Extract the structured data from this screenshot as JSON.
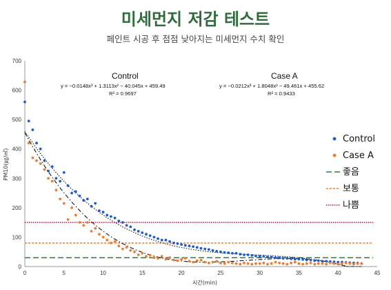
{
  "header": {
    "title": "미세먼지 저감 테스트",
    "subtitle": "페인트 시공 후 점점 낮아지는 미세먼지 수치 확인"
  },
  "chart_data": {
    "type": "scatter",
    "xlabel": "시간(min)",
    "ylabel": "PM10(㎍/㎥)",
    "xlim": [
      0,
      45
    ],
    "ylim": [
      0,
      700
    ],
    "xticks": [
      0,
      5,
      10,
      15,
      20,
      25,
      30,
      35,
      40,
      45
    ],
    "yticks": [
      0,
      100,
      200,
      300,
      400,
      500,
      600,
      700
    ],
    "grid": false,
    "legend_position": "right",
    "annotations": [
      {
        "title": "Control",
        "equation": "y = −0.0148x³ + 1.3113x² − 40.045x + 459.49",
        "r2": "R² = 0.9697"
      },
      {
        "title": "Case A",
        "equation": "y = −0.0212x³ + 1.8048x² − 49.461x + 455.62",
        "r2": "R² = 0.9433"
      }
    ],
    "series": [
      {
        "name": "Control",
        "kind": "points",
        "color": "#1f5bd1",
        "x": [
          0,
          0.5,
          1,
          1.5,
          2,
          2.5,
          3,
          3.5,
          4,
          4.5,
          5,
          5.5,
          6,
          6.5,
          7,
          7.5,
          8,
          8.5,
          9,
          9.5,
          10,
          10.5,
          11,
          11.5,
          12,
          12.5,
          13,
          13.5,
          14,
          14.5,
          15,
          15.5,
          16,
          16.5,
          17,
          17.5,
          18,
          18.5,
          19,
          19.5,
          20,
          20.5,
          21,
          21.5,
          22,
          22.5,
          23,
          23.5,
          24,
          24.5,
          25,
          25.5,
          26,
          26.5,
          27,
          27.5,
          28,
          28.5,
          29,
          29.5,
          30,
          30.5,
          31,
          31.5,
          32,
          32.5,
          33,
          33.5,
          34,
          34.5,
          35,
          35.5,
          36,
          36.5,
          37,
          37.5,
          38,
          38.5,
          39,
          39.5,
          40,
          40.5,
          41,
          41.5,
          42,
          42.5,
          43
        ],
        "y": [
          560,
          495,
          465,
          420,
          400,
          360,
          325,
          340,
          300,
          290,
          320,
          275,
          250,
          255,
          240,
          225,
          230,
          205,
          215,
          190,
          185,
          175,
          170,
          165,
          155,
          150,
          140,
          135,
          125,
          120,
          115,
          110,
          105,
          100,
          95,
          90,
          90,
          85,
          80,
          78,
          75,
          72,
          70,
          68,
          65,
          62,
          60,
          58,
          55,
          52,
          50,
          48,
          47,
          45,
          45,
          42,
          40,
          40,
          38,
          36,
          35,
          35,
          33,
          32,
          30,
          30,
          28,
          28,
          26,
          25,
          25,
          24,
          22,
          22,
          20,
          20,
          18,
          18,
          17,
          16,
          15,
          15,
          14,
          13,
          12,
          12,
          10
        ]
      },
      {
        "name": "Case A",
        "kind": "points",
        "color": "#ed7d31",
        "x": [
          0,
          0.5,
          1,
          1.5,
          2,
          2.5,
          3,
          3.5,
          4,
          4.5,
          5,
          5.5,
          6,
          6.5,
          7,
          7.5,
          8,
          8.5,
          9,
          9.5,
          10,
          10.5,
          11,
          11.5,
          12,
          12.5,
          13,
          13.5,
          14,
          14.5,
          15,
          15.5,
          16,
          16.5,
          17,
          17.5,
          18,
          18.5,
          19,
          19.5,
          20,
          20.5,
          21,
          21.5,
          22,
          22.5,
          23,
          23.5,
          24,
          24.5,
          25,
          25.5,
          26,
          26.5,
          27,
          27.5,
          28,
          28.5,
          29,
          29.5,
          30,
          30.5,
          31,
          31.5,
          32,
          32.5,
          33,
          33.5,
          34,
          34.5,
          35,
          35.5,
          36,
          36.5,
          37,
          37.5,
          38,
          38.5,
          39,
          39.5,
          40,
          40.5,
          41,
          41.5,
          42,
          42.5,
          43
        ],
        "y": [
          628,
          420,
          370,
          360,
          350,
          330,
          300,
          290,
          260,
          230,
          215,
          160,
          200,
          175,
          150,
          140,
          150,
          120,
          130,
          110,
          100,
          90,
          80,
          85,
          70,
          60,
          65,
          55,
          50,
          40,
          45,
          35,
          38,
          30,
          28,
          35,
          25,
          30,
          22,
          20,
          25,
          28,
          18,
          15,
          20,
          22,
          15,
          12,
          15,
          18,
          12,
          10,
          15,
          12,
          10,
          8,
          12,
          10,
          8,
          10,
          10,
          12,
          8,
          10,
          15,
          12,
          10,
          8,
          12,
          15,
          10,
          8,
          10,
          12,
          8,
          10,
          10,
          8,
          12,
          10,
          8,
          10,
          12,
          10,
          8,
          10,
          10
        ]
      },
      {
        "name": "좋음",
        "kind": "hline",
        "value": 30,
        "color": "#2e7d32",
        "dash": "8,4"
      },
      {
        "name": "보통",
        "kind": "hline",
        "value": 80,
        "color": "#ed7d31",
        "dash": "3,2"
      },
      {
        "name": "나쁨",
        "kind": "hline",
        "value": 150,
        "color": "#c0143c",
        "dash": "1.5,1.5"
      }
    ],
    "trendlines": [
      {
        "series": "Control",
        "coef": [
          -0.0148,
          1.3113,
          -40.045,
          459.49
        ],
        "color": "#111111",
        "dash": "1.5,2",
        "x_range": [
          0,
          43
        ]
      },
      {
        "series": "Case A",
        "coef": [
          -0.0212,
          1.8048,
          -49.461,
          455.62
        ],
        "color": "#111111",
        "dash": "6,3,1.5,3",
        "x_range": [
          0,
          43
        ]
      }
    ]
  }
}
